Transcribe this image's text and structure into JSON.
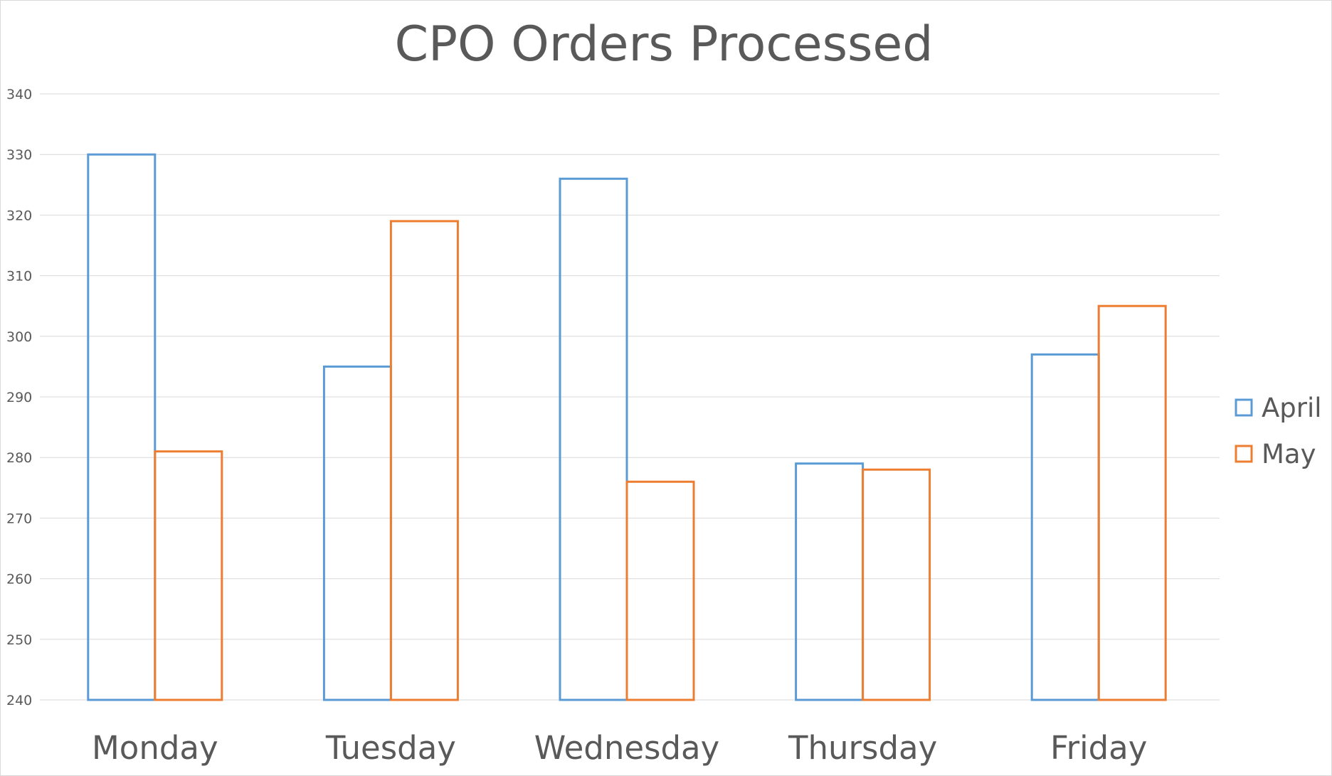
{
  "chart_data": {
    "type": "bar",
    "title": "CPO Orders Processed",
    "xlabel": "",
    "ylabel": "",
    "categories": [
      "Monday",
      "Tuesday",
      "Wednesday",
      "Thursday",
      "Friday"
    ],
    "series": [
      {
        "name": "April",
        "values": [
          330,
          295,
          326,
          279,
          297
        ],
        "color": "#5B9BD5"
      },
      {
        "name": "May",
        "values": [
          281,
          319,
          276,
          278,
          305
        ],
        "color": "#ED7D31"
      }
    ],
    "ylim": [
      240,
      340
    ],
    "yticks": [
      240,
      250,
      260,
      270,
      280,
      290,
      300,
      310,
      320,
      330,
      340
    ],
    "grid": true,
    "bar_style": "outline",
    "legend_position": "right"
  }
}
